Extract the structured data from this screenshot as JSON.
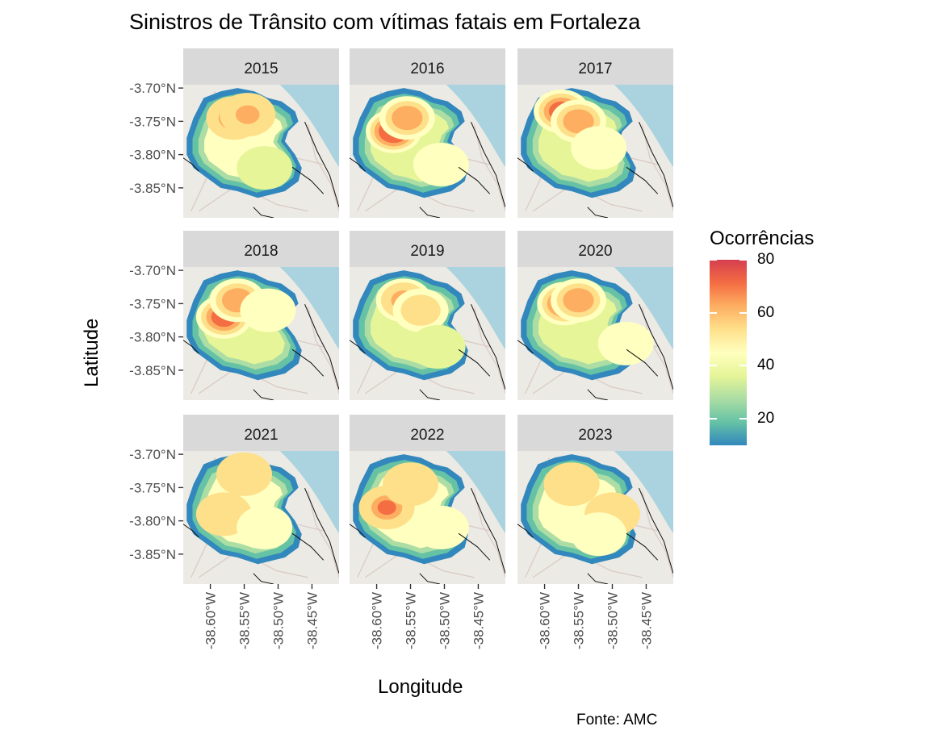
{
  "chart": {
    "title": "Sinistros de Trânsito com vítimas fatais em Fortaleza",
    "xlabel": "Longitude",
    "ylabel": "Latitude",
    "caption": "Fonte: AMC",
    "legend_title": "Ocorrências"
  },
  "colors": {
    "panel_bg": "#ebebeb",
    "strip_bg": "#d9d9d9",
    "sea": "#aad3df",
    "land": "#eceae4",
    "palette": [
      "#3288bd",
      "#66c2a5",
      "#abdda4",
      "#e6f598",
      "#ffffbf",
      "#fee08b",
      "#fdae61",
      "#f46d43",
      "#d53e4f"
    ]
  },
  "chart_data": {
    "type": "heatmap",
    "facets": [
      "2015",
      "2016",
      "2017",
      "2018",
      "2019",
      "2020",
      "2021",
      "2022",
      "2023"
    ],
    "x_ticks": [
      -38.6,
      -38.55,
      -38.5,
      -38.45
    ],
    "x_tick_labels": [
      "-38.60°W",
      "-38.55°W",
      "-38.50°W",
      "-38.45°W"
    ],
    "y_ticks": [
      -3.7,
      -3.75,
      -3.8,
      -3.85
    ],
    "y_tick_labels": [
      "-3.70°N",
      "-3.75°N",
      "-3.80°N",
      "-3.85°N"
    ],
    "xlim": [
      -38.64,
      -38.41
    ],
    "ylim": [
      -3.895,
      -3.695
    ],
    "legend": {
      "min": 10,
      "max": 80,
      "ticks": [
        20,
        40,
        60,
        80
      ],
      "tick_labels": [
        "20",
        "40",
        "60",
        "80"
      ],
      "position": "right"
    },
    "panels": [
      {
        "year": "2015",
        "base": 45,
        "hotspots": [
          {
            "lon": -38.565,
            "lat": -3.745,
            "intensity": 65
          },
          {
            "lon": -38.545,
            "lat": -3.74,
            "intensity": 62
          },
          {
            "lon": -38.52,
            "lat": -3.82,
            "intensity": 40
          }
        ]
      },
      {
        "year": "2016",
        "base": 40,
        "hotspots": [
          {
            "lon": -38.575,
            "lat": -3.765,
            "intensity": 75
          },
          {
            "lon": -38.555,
            "lat": -3.745,
            "intensity": 66
          },
          {
            "lon": -38.505,
            "lat": -3.815,
            "intensity": 42
          }
        ]
      },
      {
        "year": "2017",
        "base": 40,
        "hotspots": [
          {
            "lon": -38.575,
            "lat": -3.735,
            "intensity": 68
          },
          {
            "lon": -38.55,
            "lat": -3.75,
            "intensity": 62
          },
          {
            "lon": -38.52,
            "lat": -3.79,
            "intensity": 45
          }
        ]
      },
      {
        "year": "2018",
        "base": 40,
        "hotspots": [
          {
            "lon": -38.58,
            "lat": -3.77,
            "intensity": 67
          },
          {
            "lon": -38.56,
            "lat": -3.745,
            "intensity": 65
          },
          {
            "lon": -38.515,
            "lat": -3.76,
            "intensity": 45
          }
        ]
      },
      {
        "year": "2019",
        "base": 38,
        "hotspots": [
          {
            "lon": -38.56,
            "lat": -3.745,
            "intensity": 65
          },
          {
            "lon": -38.535,
            "lat": -3.76,
            "intensity": 55
          },
          {
            "lon": -38.51,
            "lat": -3.815,
            "intensity": 35
          }
        ]
      },
      {
        "year": "2020",
        "base": 40,
        "hotspots": [
          {
            "lon": -38.57,
            "lat": -3.75,
            "intensity": 67
          },
          {
            "lon": -38.55,
            "lat": -3.745,
            "intensity": 63
          },
          {
            "lon": -38.48,
            "lat": -3.81,
            "intensity": 48
          }
        ]
      },
      {
        "year": "2021",
        "base": 47,
        "hotspots": [
          {
            "lon": -38.55,
            "lat": -3.73,
            "intensity": 56
          },
          {
            "lon": -38.58,
            "lat": -3.79,
            "intensity": 50
          },
          {
            "lon": -38.52,
            "lat": -3.81,
            "intensity": 48
          }
        ]
      },
      {
        "year": "2022",
        "base": 45,
        "hotspots": [
          {
            "lon": -38.585,
            "lat": -3.78,
            "intensity": 67
          },
          {
            "lon": -38.55,
            "lat": -3.745,
            "intensity": 52
          },
          {
            "lon": -38.505,
            "lat": -3.81,
            "intensity": 47
          }
        ]
      },
      {
        "year": "2023",
        "base": 48,
        "hotspots": [
          {
            "lon": -38.56,
            "lat": -3.745,
            "intensity": 52
          },
          {
            "lon": -38.5,
            "lat": -3.79,
            "intensity": 50
          },
          {
            "lon": -38.52,
            "lat": -3.82,
            "intensity": 48
          }
        ]
      }
    ]
  }
}
